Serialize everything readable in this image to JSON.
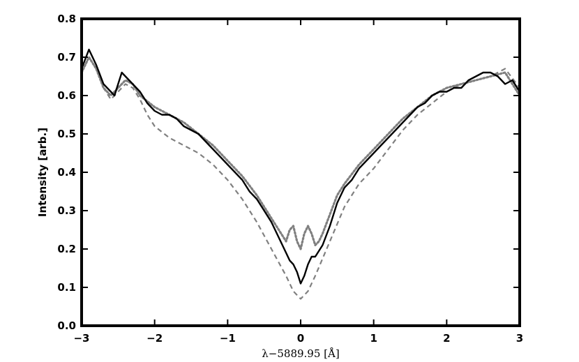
{
  "chart_data": {
    "type": "line",
    "title": "",
    "xlabel": "λ−5889.95 [Å]",
    "ylabel": "Intensity [arb.]",
    "xlim": [
      -3,
      3
    ],
    "ylim": [
      0,
      0.8
    ],
    "xticks": [
      -3,
      -2,
      -1,
      0,
      1,
      2,
      3
    ],
    "xtick_labels": [
      "−3",
      "−2",
      "−1",
      "0",
      "1",
      "2",
      "3"
    ],
    "yticks": [
      0.0,
      0.1,
      0.2,
      0.3,
      0.4,
      0.5,
      0.6,
      0.7,
      0.8
    ],
    "ytick_labels": [
      "0.0",
      "0.1",
      "0.2",
      "0.3",
      "0.4",
      "0.5",
      "0.6",
      "0.7",
      "0.8"
    ],
    "grid": false,
    "legend": "none",
    "series": [
      {
        "style": "solid",
        "color": "#000000",
        "x": [
          -3.0,
          -2.9,
          -2.8,
          -2.7,
          -2.6,
          -2.55,
          -2.5,
          -2.45,
          -2.4,
          -2.3,
          -2.2,
          -2.1,
          -2.0,
          -1.9,
          -1.8,
          -1.7,
          -1.6,
          -1.5,
          -1.4,
          -1.3,
          -1.2,
          -1.1,
          -1.0,
          -0.9,
          -0.8,
          -0.7,
          -0.6,
          -0.5,
          -0.4,
          -0.3,
          -0.2,
          -0.15,
          -0.1,
          -0.05,
          0.0,
          0.05,
          0.1,
          0.15,
          0.2,
          0.3,
          0.4,
          0.5,
          0.6,
          0.7,
          0.8,
          0.9,
          1.0,
          1.1,
          1.2,
          1.3,
          1.4,
          1.5,
          1.6,
          1.7,
          1.8,
          1.9,
          2.0,
          2.1,
          2.2,
          2.3,
          2.4,
          2.5,
          2.6,
          2.7,
          2.8,
          2.9,
          3.0
        ],
        "y": [
          0.67,
          0.72,
          0.68,
          0.63,
          0.61,
          0.6,
          0.63,
          0.66,
          0.65,
          0.63,
          0.61,
          0.58,
          0.56,
          0.55,
          0.55,
          0.54,
          0.52,
          0.51,
          0.5,
          0.48,
          0.46,
          0.44,
          0.42,
          0.4,
          0.38,
          0.35,
          0.33,
          0.3,
          0.27,
          0.23,
          0.19,
          0.17,
          0.16,
          0.14,
          0.11,
          0.13,
          0.16,
          0.18,
          0.18,
          0.21,
          0.26,
          0.32,
          0.36,
          0.38,
          0.41,
          0.43,
          0.45,
          0.47,
          0.49,
          0.51,
          0.53,
          0.55,
          0.57,
          0.58,
          0.6,
          0.61,
          0.61,
          0.62,
          0.62,
          0.64,
          0.65,
          0.66,
          0.66,
          0.65,
          0.63,
          0.64,
          0.61
        ]
      },
      {
        "style": "dotted",
        "color": "#808080",
        "x": [
          -3.0,
          -2.9,
          -2.8,
          -2.7,
          -2.6,
          -2.5,
          -2.4,
          -2.3,
          -2.2,
          -2.0,
          -1.8,
          -1.6,
          -1.4,
          -1.2,
          -1.0,
          -0.8,
          -0.6,
          -0.4,
          -0.3,
          -0.2,
          -0.15,
          -0.1,
          -0.05,
          0.0,
          0.05,
          0.1,
          0.15,
          0.2,
          0.25,
          0.3,
          0.4,
          0.5,
          0.6,
          0.8,
          1.0,
          1.2,
          1.4,
          1.6,
          1.8,
          2.0,
          2.2,
          2.4,
          2.6,
          2.8,
          3.0
        ],
        "y": [
          0.66,
          0.7,
          0.67,
          0.62,
          0.6,
          0.62,
          0.64,
          0.63,
          0.6,
          0.57,
          0.55,
          0.53,
          0.5,
          0.47,
          0.43,
          0.39,
          0.34,
          0.28,
          0.25,
          0.22,
          0.25,
          0.26,
          0.22,
          0.2,
          0.24,
          0.26,
          0.24,
          0.21,
          0.22,
          0.24,
          0.29,
          0.34,
          0.37,
          0.42,
          0.46,
          0.5,
          0.54,
          0.57,
          0.6,
          0.62,
          0.63,
          0.64,
          0.65,
          0.66,
          0.6
        ]
      },
      {
        "style": "dashed",
        "color": "#808080",
        "x": [
          -3.0,
          -2.9,
          -2.8,
          -2.7,
          -2.6,
          -2.5,
          -2.4,
          -2.3,
          -2.2,
          -2.1,
          -2.0,
          -1.8,
          -1.6,
          -1.4,
          -1.2,
          -1.0,
          -0.8,
          -0.6,
          -0.4,
          -0.2,
          -0.1,
          0.0,
          0.1,
          0.2,
          0.4,
          0.6,
          0.8,
          1.0,
          1.2,
          1.4,
          1.6,
          1.8,
          2.0,
          2.2,
          2.4,
          2.6,
          2.8,
          3.0
        ],
        "y": [
          0.66,
          0.7,
          0.67,
          0.62,
          0.59,
          0.61,
          0.63,
          0.62,
          0.59,
          0.55,
          0.52,
          0.49,
          0.47,
          0.45,
          0.42,
          0.38,
          0.33,
          0.27,
          0.2,
          0.13,
          0.09,
          0.07,
          0.09,
          0.13,
          0.22,
          0.31,
          0.37,
          0.41,
          0.46,
          0.51,
          0.55,
          0.58,
          0.61,
          0.63,
          0.64,
          0.65,
          0.67,
          0.62
        ]
      }
    ]
  }
}
